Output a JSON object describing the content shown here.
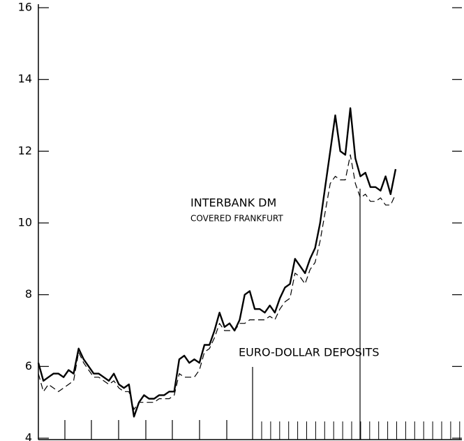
{
  "chart_data": {
    "type": "line",
    "annotations": [
      "COVERED FRANKFURT"
    ],
    "series": [
      {
        "name": "INTERBANK DM",
        "color": "#000000",
        "dash": false,
        "values": [
          6.1,
          5.6,
          5.7,
          5.8,
          5.8,
          5.7,
          5.9,
          5.8,
          6.5,
          6.2,
          6.0,
          5.8,
          5.8,
          5.7,
          5.6,
          5.8,
          5.5,
          5.4,
          5.5,
          4.6,
          5.0,
          5.2,
          5.1,
          5.1,
          5.2,
          5.2,
          5.3,
          5.3,
          6.2,
          6.3,
          6.1,
          6.2,
          6.1,
          6.6,
          6.6,
          7.0,
          7.5,
          7.1,
          7.2,
          7.0,
          7.3,
          8.0,
          8.1,
          7.6,
          7.6,
          7.5,
          7.7,
          7.5,
          7.9,
          8.2,
          8.3,
          9.0,
          8.8,
          8.6,
          9.0,
          9.3,
          10.0,
          11.0,
          12.0,
          13.0,
          12.0,
          11.9,
          13.2,
          11.8,
          11.3,
          11.4,
          11.0,
          11.0,
          10.9,
          11.3,
          10.8,
          11.5
        ]
      },
      {
        "name": "EURO-DOLLAR DEPOSITS",
        "color": "#000000",
        "dash": true,
        "values": [
          5.8,
          5.3,
          5.5,
          5.4,
          5.3,
          5.4,
          5.5,
          5.6,
          6.4,
          6.1,
          5.9,
          5.7,
          5.7,
          5.6,
          5.5,
          5.6,
          5.4,
          5.3,
          5.3,
          4.8,
          5.0,
          5.0,
          5.0,
          5.0,
          5.1,
          5.1,
          5.1,
          5.2,
          5.8,
          5.7,
          5.7,
          5.7,
          5.9,
          6.4,
          6.5,
          6.8,
          7.2,
          7.0,
          7.0,
          7.0,
          7.2,
          7.2,
          7.3,
          7.3,
          7.3,
          7.3,
          7.4,
          7.3,
          7.6,
          7.8,
          7.9,
          8.6,
          8.5,
          8.3,
          8.7,
          8.9,
          9.5,
          10.3,
          11.1,
          11.3,
          11.2,
          11.2,
          11.9,
          11.1,
          10.7,
          10.8,
          10.6,
          10.6,
          10.7,
          10.5,
          10.5,
          10.8
        ]
      }
    ],
    "ylim": [
      4,
      16
    ],
    "yticks": [
      4,
      6,
      8,
      10,
      12,
      14,
      16
    ],
    "grid": false
  }
}
